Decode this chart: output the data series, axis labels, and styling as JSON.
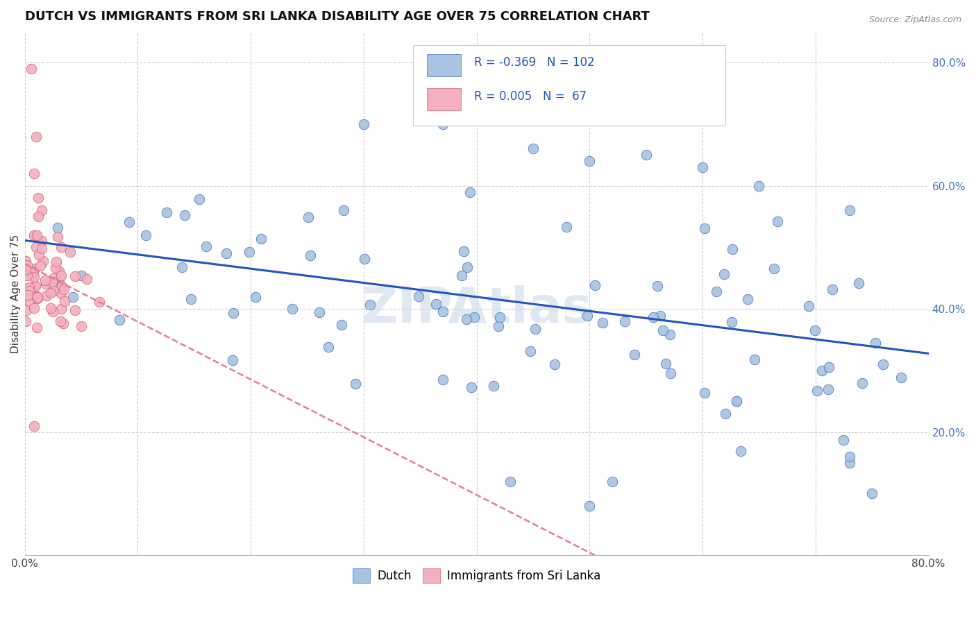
{
  "title": "DUTCH VS IMMIGRANTS FROM SRI LANKA DISABILITY AGE OVER 75 CORRELATION CHART",
  "source": "Source: ZipAtlas.com",
  "ylabel": "Disability Age Over 75",
  "xlim": [
    0.0,
    0.8
  ],
  "ylim": [
    0.0,
    0.85
  ],
  "dutch_scatter_color": "#a8c4e0",
  "dutch_edge_color": "#4472c4",
  "srilanka_scatter_color": "#f4b0c0",
  "srilanka_edge_color": "#d06070",
  "dutch_line_color": "#2255bb",
  "srilanka_line_color": "#e08090",
  "dutch_R": "-0.369",
  "dutch_N": "102",
  "srilanka_R": "0.005",
  "srilanka_N": "67",
  "legend_dutch_color": "#a8c4e0",
  "legend_dutch_edge": "#4472c4",
  "legend_srilanka_color": "#f4b0c0",
  "legend_srilanka_edge": "#d06070",
  "background_color": "#ffffff",
  "grid_color": "#cccccc",
  "watermark": "ZIPAtlas",
  "title_fontsize": 13,
  "axis_label_fontsize": 11,
  "tick_fontsize": 11,
  "legend_fontsize": 12
}
